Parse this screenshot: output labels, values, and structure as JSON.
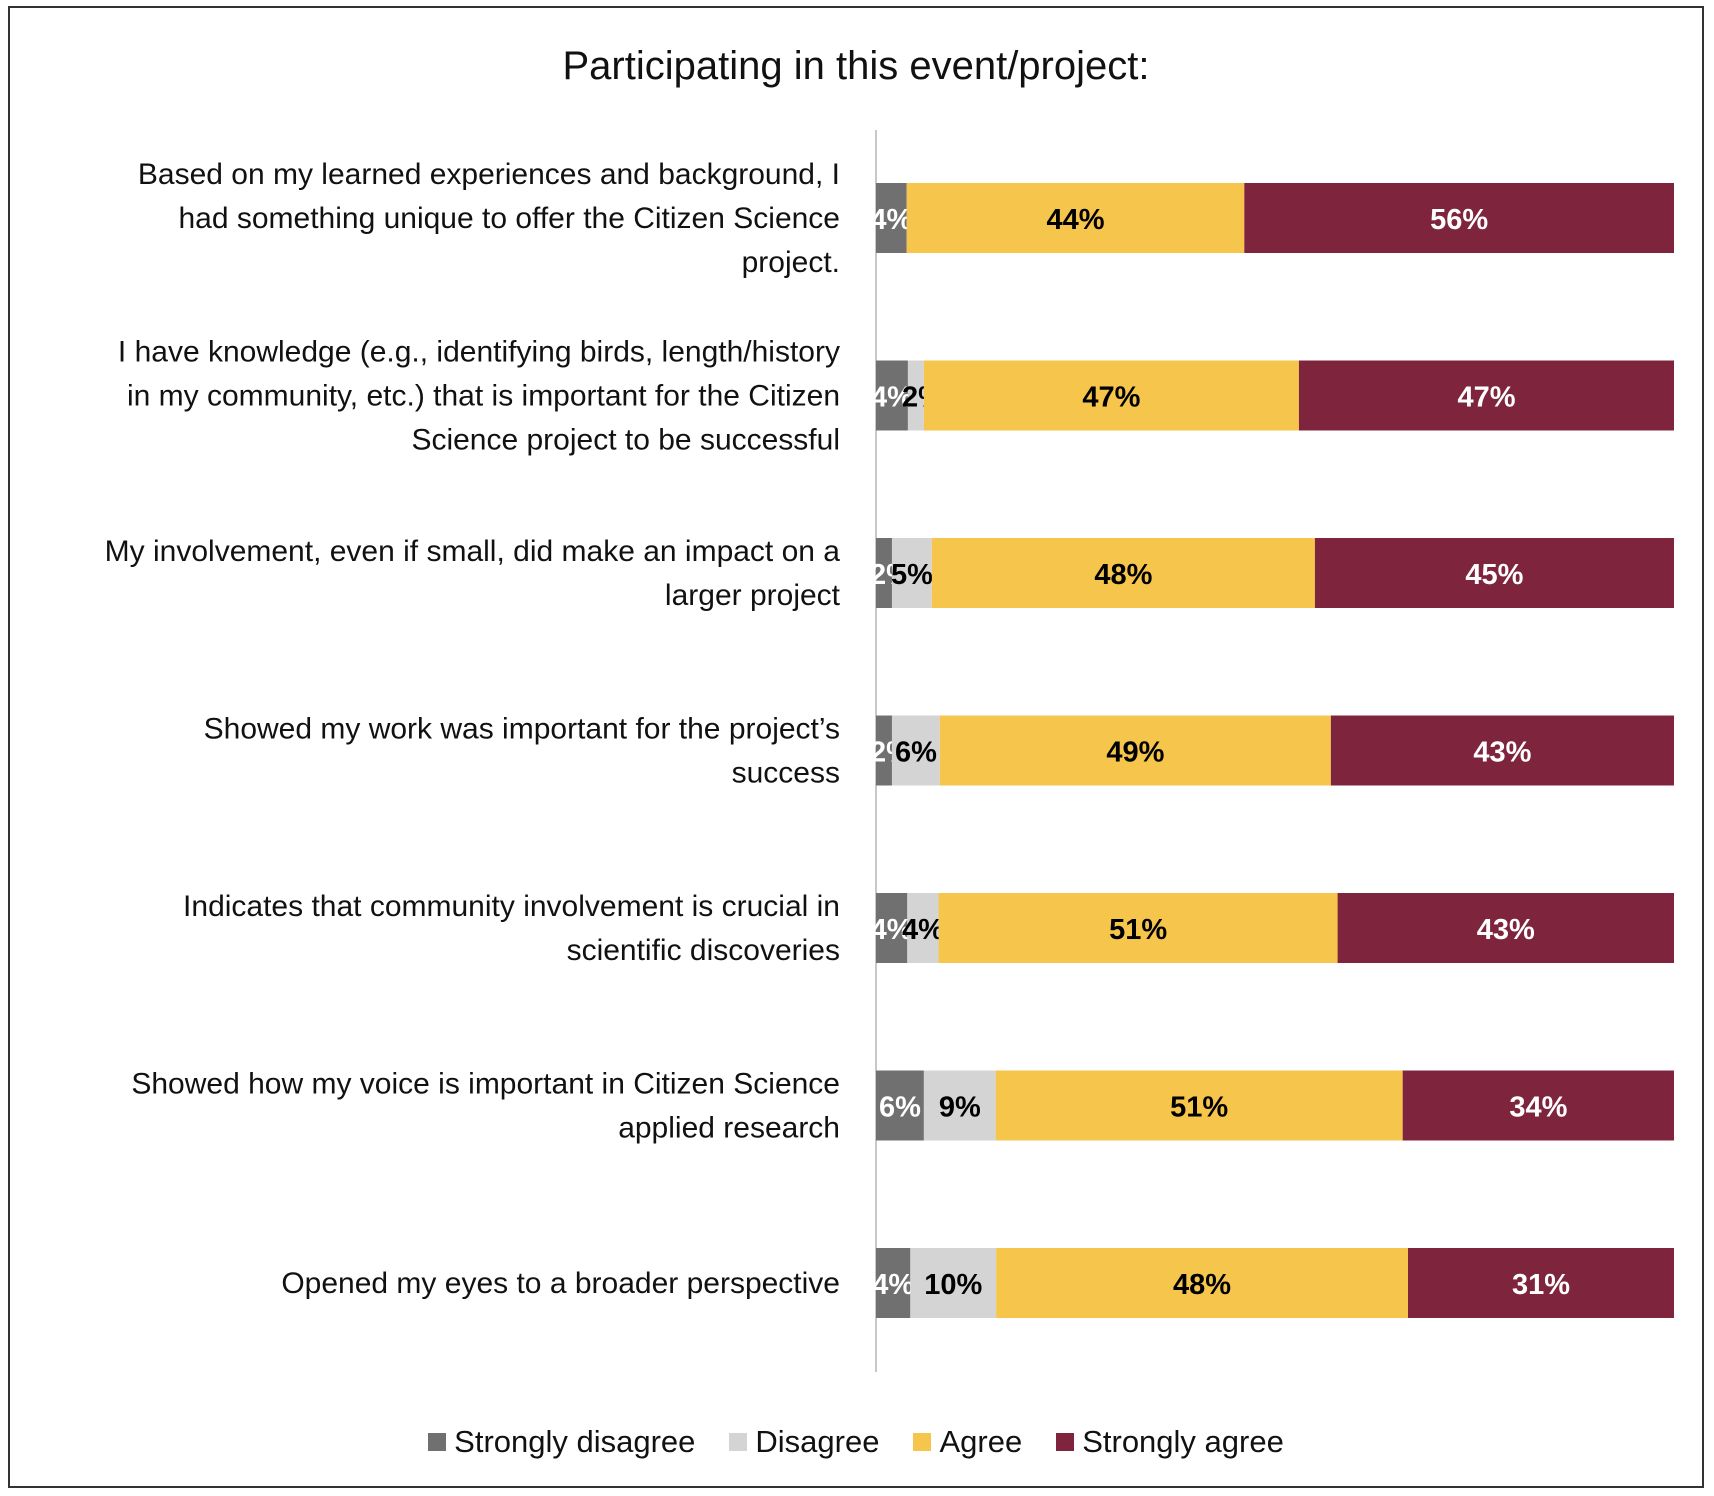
{
  "chart_data": {
    "type": "bar",
    "orientation": "horizontal",
    "stacked": true,
    "title": "Participating in this event/project:",
    "categories": [
      "Based on my learned experiences and background, I had something unique to offer the Citizen Science project.",
      "I have knowledge (e.g., identifying birds, length/history in my community, etc.)  that is important for the Citizen Science project to be successful",
      "My involvement, even if small, did make an impact on a larger project",
      "Showed my work was important for the project’s success",
      "Indicates that community involvement is crucial in scientific discoveries",
      "Showed how my voice is important in Citizen Science applied research",
      "Opened my eyes to a broader perspective"
    ],
    "category_lines": [
      [
        "Based on my learned experiences and background, I",
        "had something unique to offer the Citizen Science",
        "project."
      ],
      [
        "I have knowledge (e.g., identifying birds, length/history",
        "in my community, etc.)  that is important for the Citizen",
        "Science project to be successful"
      ],
      [
        "My involvement, even if small, did make an impact on a",
        "larger project"
      ],
      [
        "Showed my work was important for the project’s",
        "success"
      ],
      [
        "Indicates that community involvement is crucial in",
        "scientific discoveries"
      ],
      [
        "Showed how my voice is important in Citizen Science",
        "applied research"
      ],
      [
        "Opened my eyes to a broader perspective"
      ]
    ],
    "series": [
      {
        "name": "Strongly disagree",
        "color": "#707070",
        "label_color": "#ffffff",
        "values": [
          4,
          4,
          2,
          2,
          4,
          6,
          4
        ],
        "labels": [
          "4%",
          "4%",
          "2%",
          "2%",
          "4%",
          "6%",
          "4%"
        ]
      },
      {
        "name": "Disagree",
        "color": "#d4d4d4",
        "label_color": "#000000",
        "values": [
          0,
          2,
          5,
          6,
          4,
          9,
          10
        ],
        "labels": [
          "",
          "2%",
          "5%",
          "6%",
          "4%",
          "9%",
          "10%"
        ]
      },
      {
        "name": "Agree",
        "color": "#f5c54c",
        "label_color": "#000000",
        "values": [
          44,
          47,
          48,
          49,
          51,
          51,
          48
        ],
        "labels": [
          "44%",
          "47%",
          "48%",
          "49%",
          "51%",
          "51%",
          "48%"
        ]
      },
      {
        "name": "Strongly agree",
        "color": "#7e253d",
        "label_color": "#ffffff",
        "values": [
          56,
          47,
          45,
          43,
          43,
          34,
          31
        ],
        "labels": [
          "56%",
          "47%",
          "45%",
          "43%",
          "43%",
          "34%",
          "31%"
        ]
      }
    ],
    "legend_position": "bottom",
    "grid": false
  }
}
